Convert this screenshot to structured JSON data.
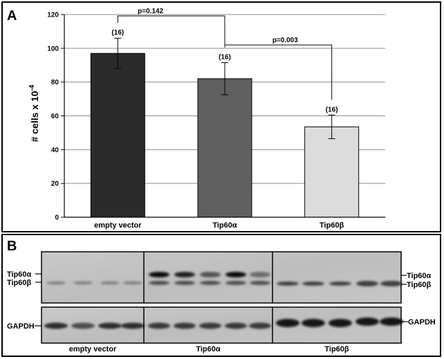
{
  "panel_a": {
    "letter": "A",
    "chart_data": {
      "type": "bar",
      "categories": [
        "empty vector",
        "Tip60α",
        "Tip60β"
      ],
      "values": [
        97,
        82,
        53.5
      ],
      "errors": [
        9,
        9.5,
        7
      ],
      "n_labels": [
        "(16)",
        "(16)",
        "(16)"
      ],
      "bar_colors": [
        "#2b2b2b",
        "#5f5f5f",
        "#dcdcdc"
      ],
      "ylabel_main": "# cells x 10",
      "ylabel_sup": "-4",
      "ylim": [
        0,
        120
      ],
      "yticks": [
        "0",
        "20",
        "40",
        "60",
        "80",
        "100",
        "120"
      ],
      "grid": true,
      "annotations": [
        {
          "from": 0,
          "to": 1,
          "label": "p=0.142"
        },
        {
          "from": 1,
          "to": 2,
          "label": "p=0.003"
        }
      ]
    }
  },
  "panel_b": {
    "letter": "B",
    "left_labels_top": [
      "Tip60α",
      "Tip60β"
    ],
    "right_labels_top": [
      "Tip60α",
      "Tip60β"
    ],
    "left_label_bottom": "GAPDH",
    "right_label_bottom": "GAPDH",
    "lanes": [
      "empty vector",
      "Tip60α",
      "Tip60β"
    ]
  }
}
